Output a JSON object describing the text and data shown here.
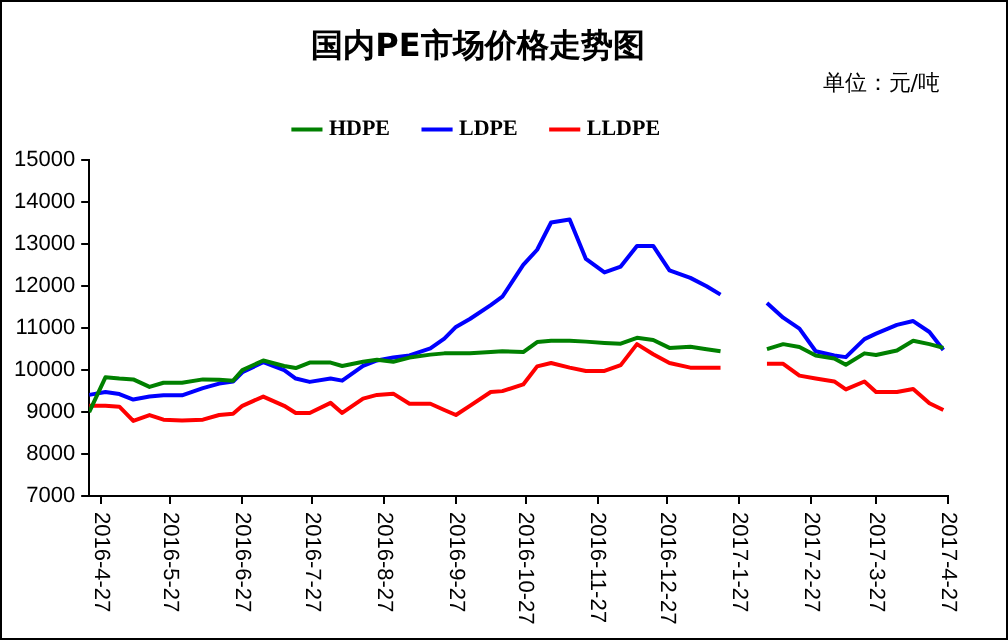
{
  "chart_data": {
    "type": "line",
    "title": "国内PE市场价格走势图",
    "annotations": [
      "单位：元/吨"
    ],
    "x": [
      "2016-04-22",
      "2016-04-29",
      "2016-05-05",
      "2016-05-11",
      "2016-05-18",
      "2016-05-24",
      "2016-06-01",
      "2016-06-10",
      "2016-06-17",
      "2016-06-23",
      "2016-06-27",
      "2016-07-06",
      "2016-07-15",
      "2016-07-20",
      "2016-07-26",
      "2016-08-04",
      "2016-08-09",
      "2016-08-18",
      "2016-08-24",
      "2016-08-31",
      "2016-09-07",
      "2016-09-16",
      "2016-09-22",
      "2016-09-27",
      "2016-10-03",
      "2016-10-12",
      "2016-10-17",
      "2016-10-26",
      "2016-11-01",
      "2016-11-07",
      "2016-11-15",
      "2016-11-22",
      "2016-11-30",
      "2016-12-07",
      "2016-12-14",
      "2016-12-21",
      "2016-12-28",
      "2017-01-06",
      "2017-01-13",
      "2017-01-19",
      "2017-01-29",
      "2017-02-08",
      "2017-02-15",
      "2017-02-22",
      "2017-03-01",
      "2017-03-09",
      "2017-03-14",
      "2017-03-22",
      "2017-03-27",
      "2017-04-05",
      "2017-04-12",
      "2017-04-19",
      "2017-04-25"
    ],
    "series": [
      {
        "name": "HDPE",
        "color": "#008000",
        "values": [
          9000,
          9830,
          9800,
          9780,
          9600,
          9700,
          9700,
          9780,
          9770,
          9750,
          10000,
          10230,
          10100,
          10050,
          10180,
          10180,
          10100,
          10200,
          10250,
          10200,
          10300,
          10370,
          10400,
          10400,
          10400,
          10430,
          10450,
          10430,
          10670,
          10700,
          10700,
          10680,
          10650,
          10630,
          10770,
          10720,
          10530,
          10560,
          10500,
          10450,
          null,
          10500,
          10620,
          10550,
          10350,
          10280,
          10130,
          10400,
          10360,
          10470,
          10700,
          10620,
          10530
        ]
      },
      {
        "name": "LDPE",
        "color": "#0000ff",
        "values": [
          9410,
          9480,
          9430,
          9300,
          9370,
          9400,
          9400,
          9570,
          9680,
          9730,
          9950,
          10190,
          10000,
          9800,
          9720,
          9800,
          9750,
          10100,
          10230,
          10300,
          10350,
          10520,
          10750,
          11030,
          11220,
          11550,
          11750,
          12510,
          12870,
          13520,
          13590,
          12650,
          12330,
          12470,
          12960,
          12960,
          12380,
          12200,
          12000,
          11800,
          null,
          11600,
          11250,
          10990,
          10450,
          10350,
          10310,
          10740,
          10870,
          11080,
          11170,
          10910,
          10480
        ]
      },
      {
        "name": "LLDPE",
        "color": "#ff0000",
        "values": [
          9150,
          9150,
          9130,
          8790,
          8930,
          8820,
          8800,
          8820,
          8930,
          8960,
          9150,
          9370,
          9150,
          8980,
          8980,
          9220,
          8980,
          9320,
          9410,
          9440,
          9200,
          9200,
          9050,
          8930,
          9150,
          9480,
          9500,
          9660,
          10090,
          10170,
          10060,
          9980,
          9980,
          10120,
          10620,
          10380,
          10170,
          10060,
          10060,
          10060,
          null,
          10150,
          10150,
          9870,
          9800,
          9730,
          9540,
          9730,
          9480,
          9480,
          9550,
          9210,
          9050
        ]
      }
    ],
    "xlim": [
      "2016-04-22",
      "2017-04-27"
    ],
    "xticks": [
      {
        "value": "2016-04-27",
        "label": "2016-4-27"
      },
      {
        "value": "2016-05-27",
        "label": "2016-5-27"
      },
      {
        "value": "2016-06-27",
        "label": "2016-6-27"
      },
      {
        "value": "2016-07-27",
        "label": "2016-7-27"
      },
      {
        "value": "2016-08-27",
        "label": "2016-8-27"
      },
      {
        "value": "2016-09-27",
        "label": "2016-9-27"
      },
      {
        "value": "2016-10-27",
        "label": "2016-10-27"
      },
      {
        "value": "2016-11-27",
        "label": "2016-11-27"
      },
      {
        "value": "2016-12-27",
        "label": "2016-12-27"
      },
      {
        "value": "2017-01-27",
        "label": "2017-1-27"
      },
      {
        "value": "2017-02-27",
        "label": "2017-2-27"
      },
      {
        "value": "2017-03-27",
        "label": "2017-3-27"
      },
      {
        "value": "2017-04-27",
        "label": "2017-4-27"
      }
    ],
    "ylim": [
      7000,
      15000
    ],
    "yticks": [
      7000,
      8000,
      9000,
      10000,
      11000,
      12000,
      13000,
      14000,
      15000
    ],
    "grid": false,
    "legend": "top"
  }
}
